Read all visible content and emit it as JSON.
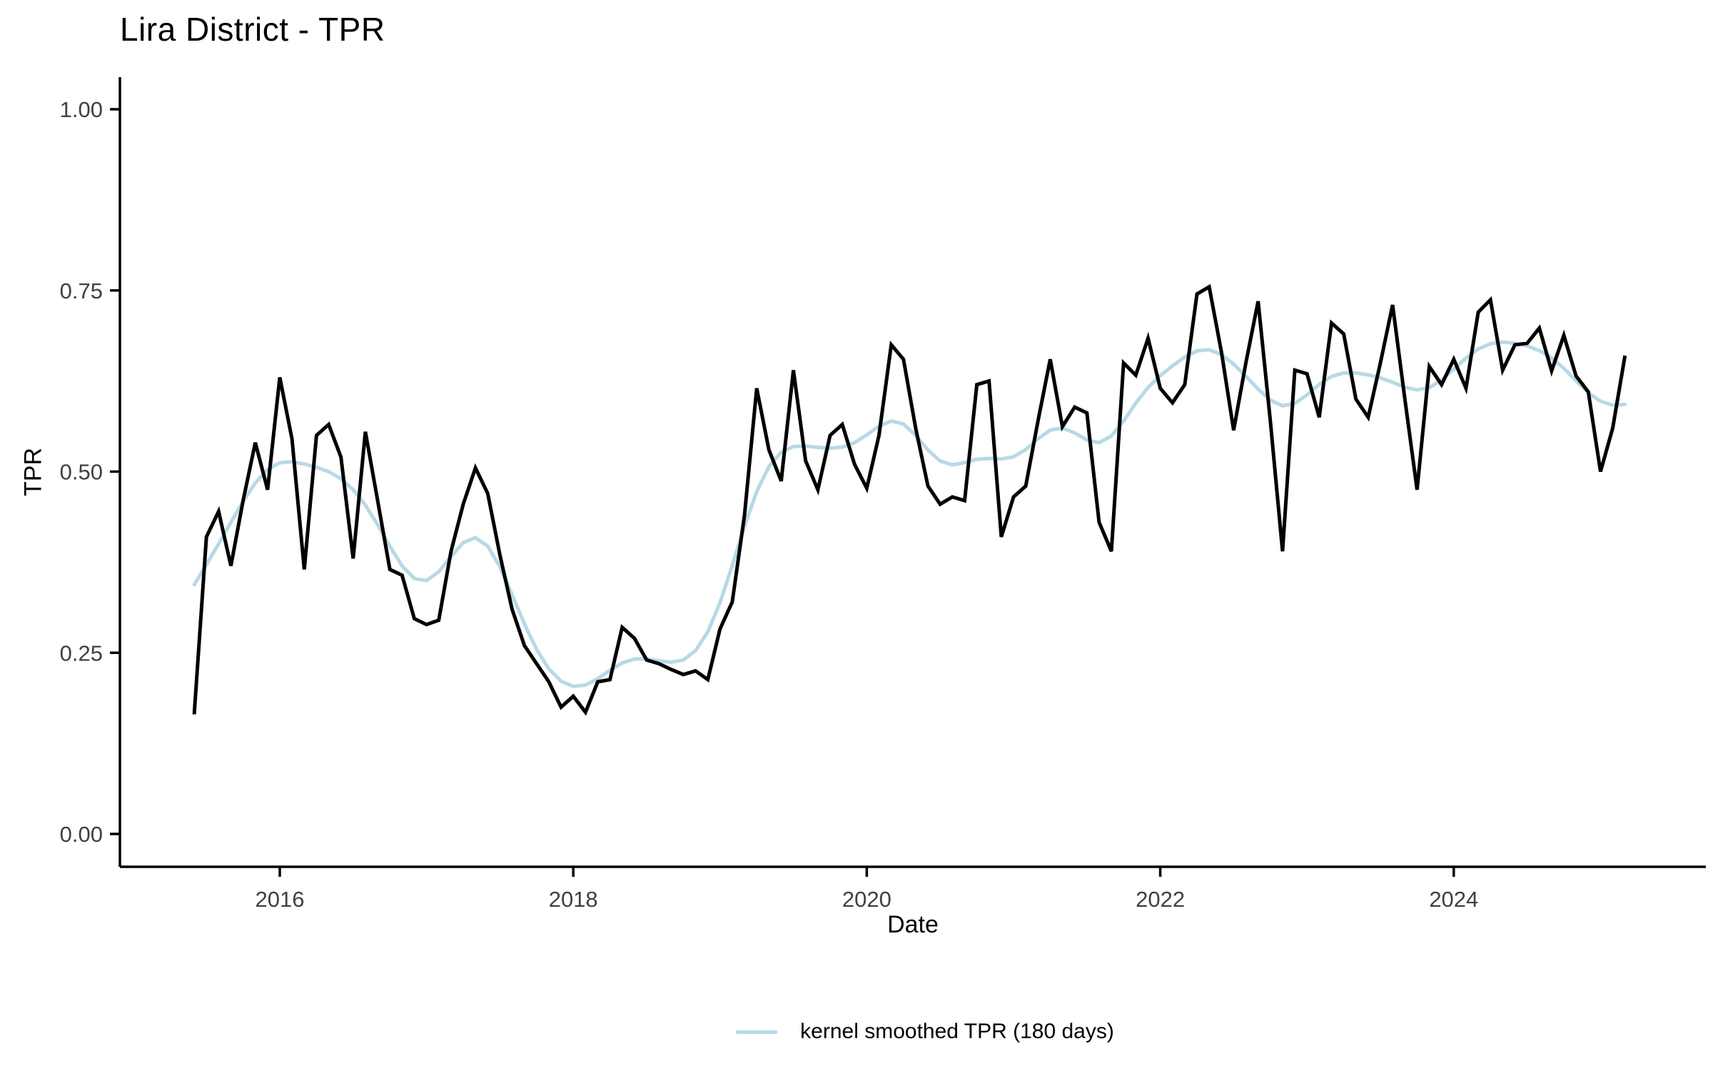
{
  "page": {
    "background": "#ffffff"
  },
  "chart_data": {
    "type": "line",
    "title": "Lira District - TPR",
    "xlabel": "Date",
    "ylabel": "TPR",
    "ylim": [
      0.0,
      1.0
    ],
    "grid": false,
    "y_ticks": [
      "0.00",
      "0.25",
      "0.50",
      "0.75",
      "1.00"
    ],
    "y_tick_values": [
      0.0,
      0.25,
      0.5,
      0.75,
      1.0
    ],
    "x_ticks": [
      "2016",
      "2018",
      "2020",
      "2022",
      "2024"
    ],
    "x_tick_values": [
      2016,
      2018,
      2020,
      2022,
      2024
    ],
    "axis_text_color": "#404040",
    "axis_line_color": "#000000",
    "x": [
      "2015-06",
      "2015-07",
      "2015-08",
      "2015-09",
      "2015-10",
      "2015-11",
      "2015-12",
      "2016-01",
      "2016-02",
      "2016-03",
      "2016-04",
      "2016-05",
      "2016-06",
      "2016-07",
      "2016-08",
      "2016-09",
      "2016-10",
      "2016-11",
      "2016-12",
      "2017-01",
      "2017-02",
      "2017-03",
      "2017-04",
      "2017-05",
      "2017-06",
      "2017-07",
      "2017-08",
      "2017-09",
      "2017-10",
      "2017-11",
      "2017-12",
      "2018-01",
      "2018-02",
      "2018-03",
      "2018-04",
      "2018-05",
      "2018-06",
      "2018-07",
      "2018-08",
      "2018-09",
      "2018-10",
      "2018-11",
      "2018-12",
      "2019-01",
      "2019-02",
      "2019-03",
      "2019-04",
      "2019-05",
      "2019-06",
      "2019-07",
      "2019-08",
      "2019-09",
      "2019-10",
      "2019-11",
      "2019-12",
      "2020-01",
      "2020-02",
      "2020-03",
      "2020-04",
      "2020-05",
      "2020-06",
      "2020-07",
      "2020-08",
      "2020-09",
      "2020-10",
      "2020-11",
      "2020-12",
      "2021-01",
      "2021-02",
      "2021-03",
      "2021-04",
      "2021-05",
      "2021-06",
      "2021-07",
      "2021-08",
      "2021-09",
      "2021-10",
      "2021-11",
      "2021-12",
      "2022-01",
      "2022-02",
      "2022-03",
      "2022-04",
      "2022-05",
      "2022-06",
      "2022-07",
      "2022-08",
      "2022-09",
      "2022-10",
      "2022-11",
      "2022-12",
      "2023-01",
      "2023-02",
      "2023-03",
      "2023-04",
      "2023-05",
      "2023-06",
      "2023-07",
      "2023-08",
      "2023-09",
      "2023-10",
      "2023-11",
      "2023-12",
      "2024-01",
      "2024-02",
      "2024-03",
      "2024-04",
      "2024-05",
      "2024-06",
      "2024-07",
      "2024-08",
      "2024-09",
      "2024-10",
      "2024-11",
      "2024-12",
      "2025-01",
      "2025-02",
      "2025-03"
    ],
    "series": [
      {
        "name": "TPR",
        "color": "#000000",
        "stroke_width": 5,
        "values": [
          0.165,
          0.41,
          0.445,
          0.37,
          0.46,
          0.54,
          0.475,
          0.63,
          0.545,
          0.365,
          0.55,
          0.565,
          0.52,
          0.38,
          0.555,
          0.46,
          0.365,
          0.357,
          0.297,
          0.289,
          0.295,
          0.39,
          0.455,
          0.505,
          0.47,
          0.385,
          0.31,
          0.26,
          0.235,
          0.21,
          0.175,
          0.19,
          0.168,
          0.21,
          0.213,
          0.285,
          0.27,
          0.24,
          0.235,
          0.227,
          0.22,
          0.225,
          0.213,
          0.283,
          0.32,
          0.44,
          0.615,
          0.53,
          0.487,
          0.64,
          0.515,
          0.475,
          0.55,
          0.565,
          0.51,
          0.477,
          0.55,
          0.675,
          0.655,
          0.56,
          0.48,
          0.455,
          0.465,
          0.46,
          0.62,
          0.625,
          0.41,
          0.465,
          0.48,
          0.57,
          0.655,
          0.562,
          0.589,
          0.581,
          0.43,
          0.39,
          0.65,
          0.633,
          0.684,
          0.615,
          0.595,
          0.62,
          0.745,
          0.755,
          0.665,
          0.557,
          0.65,
          0.735,
          0.57,
          0.39,
          0.64,
          0.635,
          0.575,
          0.705,
          0.69,
          0.6,
          0.575,
          0.65,
          0.73,
          0.6,
          0.475,
          0.645,
          0.62,
          0.655,
          0.615,
          0.72,
          0.737,
          0.64,
          0.675,
          0.677,
          0.698,
          0.639,
          0.688,
          0.632,
          0.61,
          0.5,
          0.56,
          0.66
        ]
      },
      {
        "name": "kernel smoothed TPR (180 days)",
        "color": "#b7d9e6",
        "stroke_width": 5,
        "derived_from": "TPR",
        "method": "gaussian_kernel_smooth",
        "bandwidth_days": 180,
        "sigma_months": 2.2
      }
    ],
    "legend": {
      "position": "bottom-center",
      "entries": [
        {
          "label": "kernel smoothed TPR (180 days)",
          "color": "#b7d9e6"
        }
      ]
    }
  }
}
